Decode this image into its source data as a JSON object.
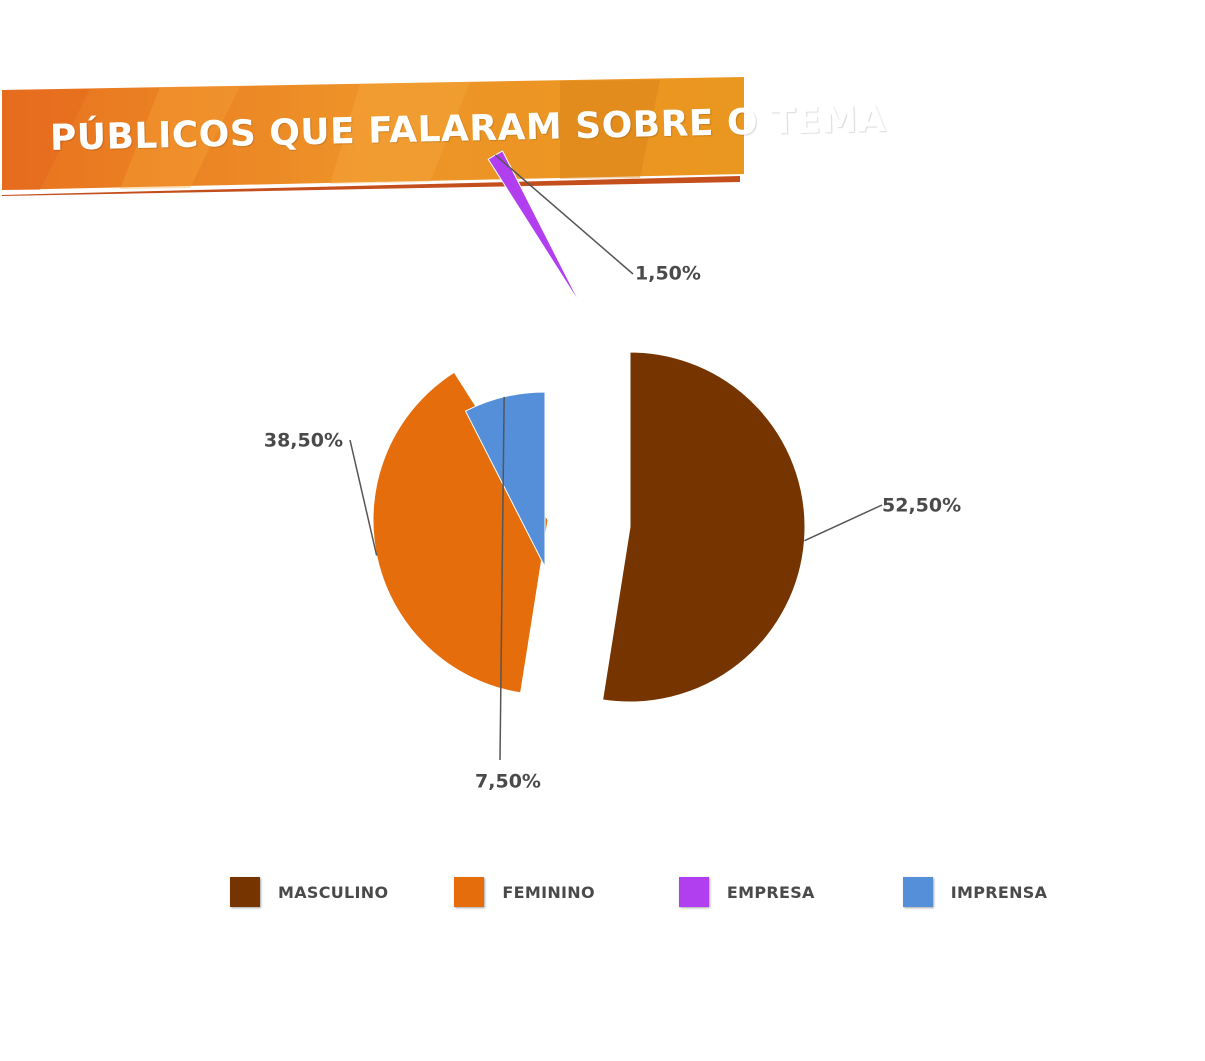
{
  "header": {
    "title": "PÚBLICOS QUE FALARAM SOBRE O TEMA",
    "colors": {
      "banner": "#e8851f",
      "banner_shadow": "#c44e1c"
    }
  },
  "chart_data": {
    "type": "pie",
    "title": "PÚBLICOS QUE FALARAM SOBRE O TEMA",
    "exploded": true,
    "categories": [
      "MASCULINO",
      "FEMININO",
      "EMPRESA",
      "IMPRENSA"
    ],
    "values": [
      52.5,
      38.5,
      1.5,
      7.5
    ],
    "unit": "%",
    "data_labels": [
      "52,50%",
      "38,50%",
      "1,50%",
      "7,50%"
    ],
    "colors": [
      "#763500",
      "#e56d0b",
      "#b13ff0",
      "#558fd9"
    ],
    "legend": {
      "position": "bottom"
    }
  }
}
